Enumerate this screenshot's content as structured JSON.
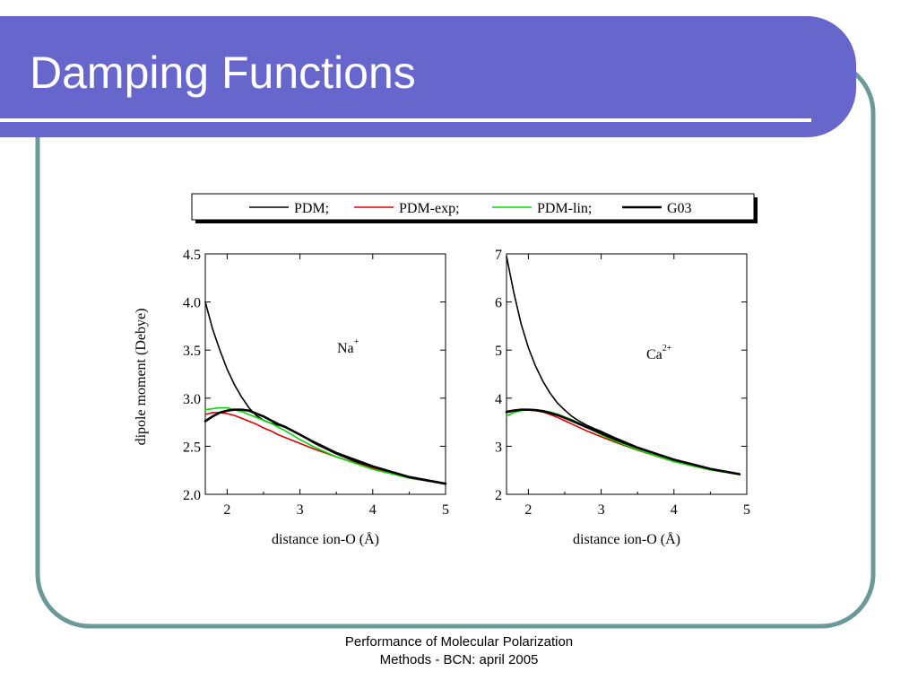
{
  "slide": {
    "title": "Damping Functions",
    "footer_line1": "Performance of Molecular Polarization",
    "footer_line2": "Methods - BCN: april 2005",
    "colors": {
      "title_bar": "#6666cc",
      "frame": "#6b9999",
      "series_pdm": "#000000",
      "series_pdm_exp": "#dd0000",
      "series_pdm_lin": "#00dd00",
      "series_g03": "#000000"
    }
  },
  "legend": {
    "entries": [
      {
        "label": "PDM;",
        "color": "#000000",
        "weight": "thin"
      },
      {
        "label": "PDM-exp;",
        "color": "#dd0000",
        "weight": "thin"
      },
      {
        "label": "PDM-lin;",
        "color": "#00dd00",
        "weight": "thin"
      },
      {
        "label": "G03",
        "color": "#000000",
        "weight": "thick"
      }
    ]
  },
  "chart_data": [
    {
      "type": "line",
      "ion_label": "Na",
      "ion_charge": "+",
      "xlabel": "distance ion-O (Å)",
      "ylabel": "dipole moment (Debye)",
      "xlim": [
        1.7,
        5.0
      ],
      "ylim": [
        2.0,
        4.5
      ],
      "xticks": [
        "2",
        "3",
        "4",
        "5"
      ],
      "yticks": [
        "2.0",
        "2.5",
        "3.0",
        "3.5",
        "4.0",
        "4.5"
      ],
      "series": [
        {
          "name": "PDM",
          "x": [
            1.7,
            1.8,
            1.9,
            2.0,
            2.1,
            2.2,
            2.3,
            2.4,
            2.5,
            2.6,
            2.7,
            2.8,
            3.0,
            3.2,
            3.5,
            4.0,
            4.5,
            5.0
          ],
          "y": [
            4.0,
            3.72,
            3.5,
            3.3,
            3.14,
            3.01,
            2.9,
            2.82,
            2.77,
            2.74,
            2.72,
            2.7,
            2.62,
            2.53,
            2.42,
            2.27,
            2.17,
            2.11
          ]
        },
        {
          "name": "PDM-exp",
          "x": [
            1.7,
            1.8,
            1.9,
            2.0,
            2.1,
            2.2,
            2.3,
            2.4,
            2.5,
            2.6,
            2.7,
            2.8,
            3.0,
            3.2,
            3.5,
            4.0,
            4.5,
            5.0
          ],
          "y": [
            2.83,
            2.85,
            2.85,
            2.84,
            2.82,
            2.79,
            2.76,
            2.73,
            2.69,
            2.66,
            2.62,
            2.59,
            2.53,
            2.47,
            2.39,
            2.27,
            2.17,
            2.11
          ]
        },
        {
          "name": "PDM-lin",
          "x": [
            1.7,
            1.8,
            1.9,
            2.0,
            2.1,
            2.2,
            2.3,
            2.4,
            2.5,
            2.6,
            2.7,
            2.8,
            3.0,
            3.2,
            3.5,
            4.0,
            4.5,
            5.0
          ],
          "y": [
            2.88,
            2.89,
            2.9,
            2.9,
            2.88,
            2.86,
            2.83,
            2.8,
            2.77,
            2.74,
            2.7,
            2.66,
            2.57,
            2.49,
            2.39,
            2.26,
            2.17,
            2.11
          ]
        },
        {
          "name": "G03",
          "x": [
            1.7,
            1.8,
            1.9,
            2.0,
            2.1,
            2.2,
            2.3,
            2.4,
            2.5,
            2.6,
            2.7,
            2.8,
            3.0,
            3.2,
            3.5,
            4.0,
            4.5,
            5.0
          ],
          "y": [
            2.76,
            2.81,
            2.85,
            2.87,
            2.88,
            2.88,
            2.87,
            2.84,
            2.81,
            2.77,
            2.73,
            2.7,
            2.62,
            2.54,
            2.43,
            2.29,
            2.18,
            2.11
          ]
        }
      ]
    },
    {
      "type": "line",
      "ion_label": "Ca",
      "ion_charge": "2+",
      "xlabel": "distance ion-O (Å)",
      "ylabel": "",
      "xlim": [
        1.7,
        5.0
      ],
      "ylim": [
        2,
        7
      ],
      "xticks": [
        "2",
        "3",
        "4",
        "5"
      ],
      "yticks": [
        "2",
        "3",
        "4",
        "5",
        "6",
        "7"
      ],
      "series": [
        {
          "name": "PDM",
          "x": [
            1.7,
            1.8,
            1.9,
            2.0,
            2.1,
            2.2,
            2.3,
            2.4,
            2.5,
            2.6,
            2.7,
            2.8,
            2.9,
            3.0,
            3.2,
            3.5,
            4.0,
            4.5,
            4.9
          ],
          "y": [
            6.95,
            6.2,
            5.55,
            5.05,
            4.66,
            4.35,
            4.1,
            3.9,
            3.75,
            3.62,
            3.52,
            3.44,
            3.37,
            3.31,
            3.17,
            2.98,
            2.71,
            2.52,
            2.41
          ]
        },
        {
          "name": "PDM-exp",
          "x": [
            1.7,
            1.8,
            1.9,
            2.0,
            2.1,
            2.2,
            2.3,
            2.4,
            2.5,
            2.6,
            2.8,
            3.0,
            3.2,
            3.5,
            4.0,
            4.5,
            4.9
          ],
          "y": [
            3.73,
            3.75,
            3.76,
            3.76,
            3.74,
            3.71,
            3.66,
            3.6,
            3.53,
            3.46,
            3.32,
            3.2,
            3.08,
            2.92,
            2.68,
            2.51,
            2.41
          ]
        },
        {
          "name": "PDM-lin",
          "x": [
            1.7,
            1.8,
            1.9,
            2.0,
            2.1,
            2.2,
            2.3,
            2.4,
            2.5,
            2.6,
            2.8,
            3.0,
            3.2,
            3.5,
            4.0,
            4.5,
            4.9
          ],
          "y": [
            3.63,
            3.7,
            3.74,
            3.76,
            3.76,
            3.74,
            3.71,
            3.67,
            3.61,
            3.55,
            3.4,
            3.24,
            3.1,
            2.93,
            2.68,
            2.51,
            2.41
          ]
        },
        {
          "name": "G03",
          "x": [
            1.7,
            1.8,
            1.9,
            2.0,
            2.1,
            2.2,
            2.3,
            2.4,
            2.5,
            2.6,
            2.8,
            3.0,
            3.2,
            3.5,
            4.0,
            4.5,
            4.9
          ],
          "y": [
            3.71,
            3.74,
            3.76,
            3.76,
            3.75,
            3.73,
            3.69,
            3.65,
            3.59,
            3.53,
            3.4,
            3.27,
            3.14,
            2.97,
            2.72,
            2.53,
            2.42
          ]
        }
      ]
    }
  ]
}
